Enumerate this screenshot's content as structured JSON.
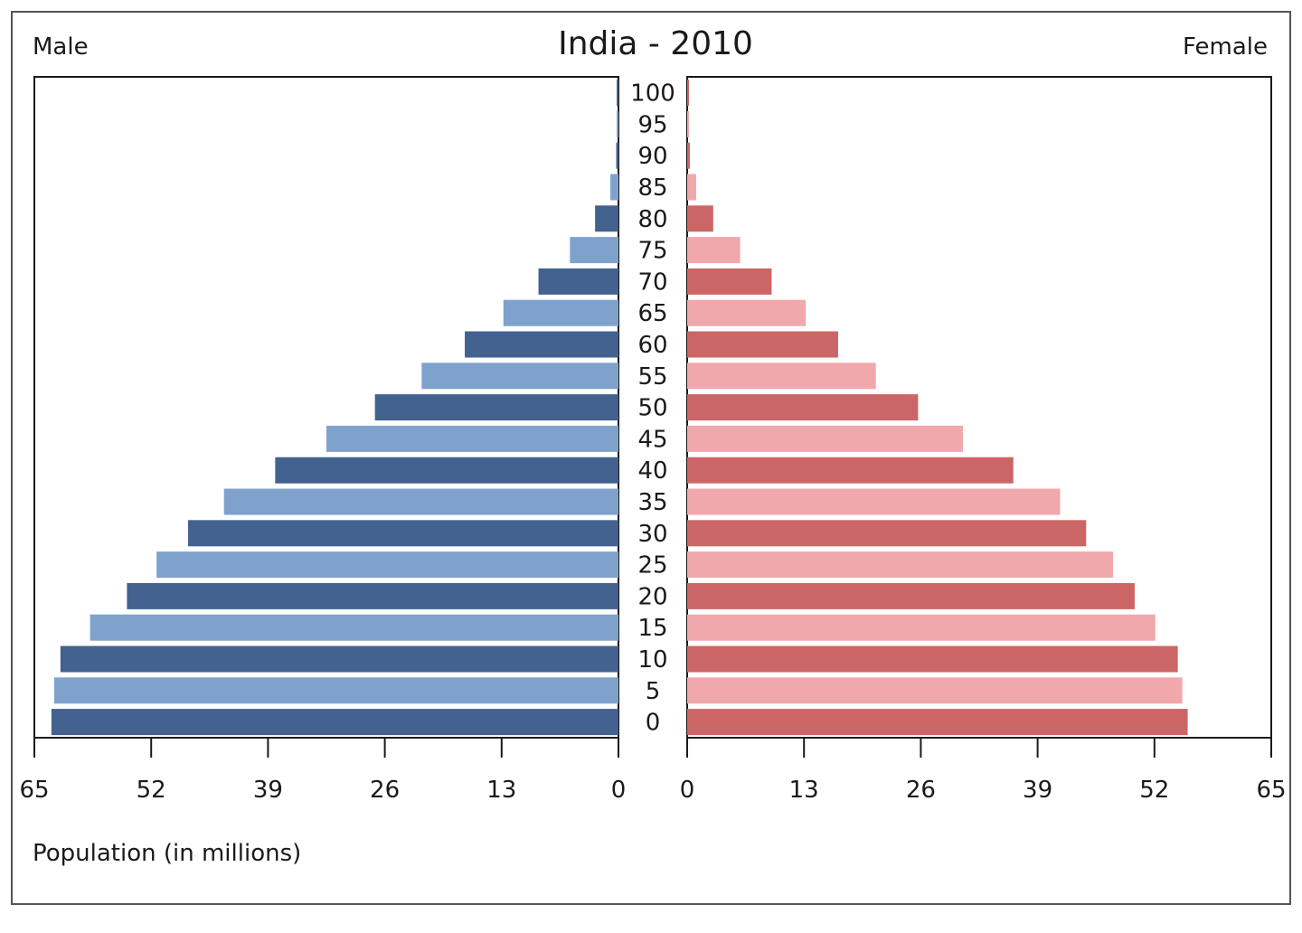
{
  "chart_data": {
    "type": "bar",
    "orientation": "horizontal",
    "layout": "population-pyramid",
    "title": "India - 2010",
    "left_label": "Male",
    "right_label": "Female",
    "xlabel": "Population (in millions)",
    "xlim": [
      0,
      65
    ],
    "left_ticks": [
      "65",
      "52",
      "39",
      "26",
      "13",
      "0"
    ],
    "right_ticks": [
      "0",
      "13",
      "26",
      "39",
      "52",
      "65"
    ],
    "tick_values": [
      0,
      13,
      26,
      39,
      52,
      65
    ],
    "grid": false,
    "categories": [
      "0",
      "5",
      "10",
      "15",
      "20",
      "25",
      "30",
      "35",
      "40",
      "45",
      "50",
      "55",
      "60",
      "65",
      "70",
      "75",
      "80",
      "85",
      "90",
      "95",
      "100"
    ],
    "series": [
      {
        "name": "Male",
        "side": "left",
        "colors": [
          "#43628f",
          "#7fa2cd"
        ],
        "values": [
          63.1,
          62.8,
          62.1,
          58.8,
          54.7,
          51.4,
          47.9,
          43.9,
          38.2,
          32.5,
          27.1,
          21.9,
          17.1,
          12.8,
          8.9,
          5.4,
          2.6,
          0.9,
          0.25,
          0.1,
          0.05
        ]
      },
      {
        "name": "Female",
        "side": "right",
        "colors": [
          "#cc6666",
          "#f0a8ad"
        ],
        "values": [
          55.7,
          55.1,
          54.6,
          52.1,
          49.8,
          47.4,
          44.4,
          41.5,
          36.3,
          30.7,
          25.7,
          21.0,
          16.8,
          13.2,
          9.4,
          5.9,
          2.9,
          1.0,
          0.3,
          0.1,
          0.05
        ]
      }
    ]
  }
}
